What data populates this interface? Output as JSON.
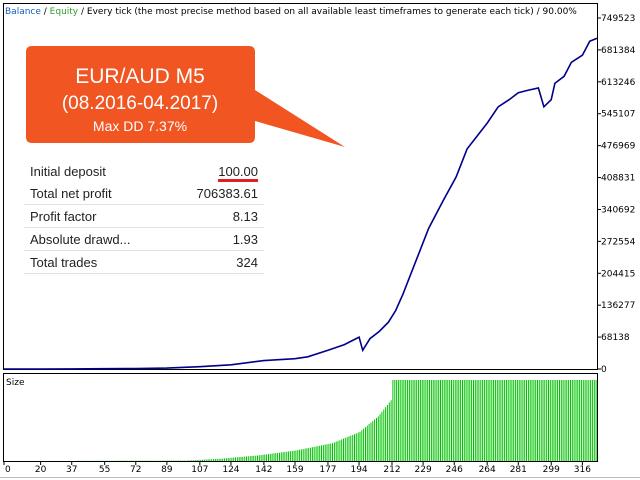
{
  "header": {
    "balance": "Balance",
    "sep1": " / ",
    "equity": "Equity",
    "sep2": " / ",
    "mode": "Every tick (the most precise method based on all available least timeframes to generate each tick)",
    "sep3": " / ",
    "quality": "90.00%",
    "colors": {
      "balance": "#1560bd",
      "equity": "#2e9e2e",
      "text": "#000000"
    }
  },
  "callout": {
    "line1": "EUR/AUD M5",
    "line2": "(08.2016-04.2017)",
    "line3": "Max DD 7.37%",
    "color": "#f05522"
  },
  "stats": [
    {
      "label": "Initial deposit",
      "value": "100.00"
    },
    {
      "label": "Total net profit",
      "value": "706383.61"
    },
    {
      "label": "Profit factor",
      "value": "8.13"
    },
    {
      "label": "Absolute drawd...",
      "value": "1.93"
    },
    {
      "label": "Total trades",
      "value": "324"
    }
  ],
  "chart_data": [
    {
      "type": "line",
      "series": [
        {
          "color": "#00008b",
          "x": [
            0,
            20,
            37,
            55,
            72,
            89,
            107,
            124,
            142,
            159,
            166,
            177,
            186,
            190,
            194,
            196,
            200,
            205,
            210,
            214,
            218,
            222,
            228,
            232,
            240,
            247,
            253,
            258,
            264,
            270,
            276,
            281,
            286,
            292,
            295,
            299,
            301,
            306,
            310,
            316,
            320,
            324
          ],
          "values": [
            100,
            100,
            300,
            600,
            1000,
            2000,
            5000,
            9000,
            18000,
            22000,
            26000,
            40000,
            52000,
            60000,
            68000,
            40000,
            65000,
            80000,
            100000,
            125000,
            160000,
            200000,
            260000,
            300000,
            360000,
            410000,
            470000,
            495000,
            525000,
            560000,
            575000,
            590000,
            595000,
            600000,
            560000,
            575000,
            610000,
            625000,
            655000,
            670000,
            700000,
            706483
          ]
        }
      ],
      "y_ticks": [
        "749523",
        "681384",
        "613246",
        "545107",
        "476969",
        "408831",
        "340692",
        "272554",
        "204415",
        "136277",
        "68138",
        "0"
      ],
      "ylim": [
        0,
        749523
      ],
      "xlim": [
        0,
        324
      ],
      "grid": false
    },
    {
      "type": "bar",
      "title": "Size",
      "color": "#00c000",
      "x_ticks": [
        "0",
        "20",
        "37",
        "55",
        "72",
        "89",
        "107",
        "124",
        "142",
        "159",
        "177",
        "194",
        "212",
        "229",
        "246",
        "264",
        "281",
        "299",
        "316"
      ],
      "xlim": [
        0,
        324
      ],
      "ylim": [
        0,
        1
      ],
      "size_curve": {
        "x": [
          0,
          100,
          120,
          140,
          160,
          180,
          195,
          205,
          212,
          213,
          324
        ],
        "values": [
          0,
          0.005,
          0.03,
          0.07,
          0.13,
          0.22,
          0.36,
          0.55,
          0.75,
          1.0,
          1.0
        ]
      }
    }
  ]
}
